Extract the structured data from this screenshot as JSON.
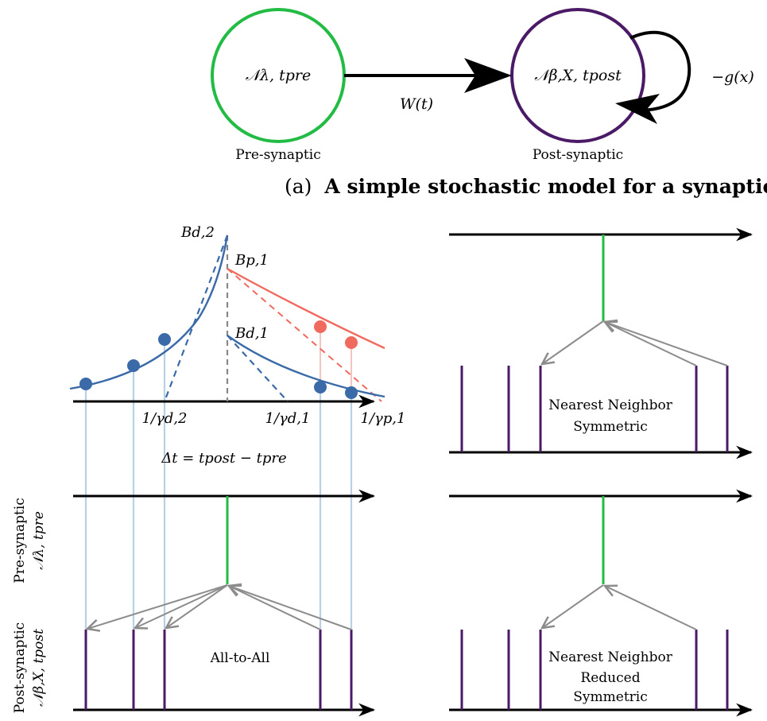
{
  "top": {
    "pre_node_label": "𝒩λ, tpre",
    "post_node_label": "𝒩β,X, tpost",
    "weight_label": "W(t)",
    "feedback_label": "−g(x)",
    "pre_caption": "Pre-synaptic",
    "post_caption": "Post-synaptic",
    "caption_prefix": "(a)",
    "caption_text": "A simple stochastic model for a synaptic connection."
  },
  "curve": {
    "labels": {
      "bd2": "Bd,2",
      "bp1": "Bp,1",
      "bd1": "Bd,1",
      "inv_gd2": "1/γd,2",
      "inv_gd1": "1/γd,1",
      "inv_gp1": "1/γp,1",
      "delta_t": "Δt = tpost − tpre"
    }
  },
  "panels": {
    "all_to_all": "All-to-All",
    "nn_sym_line1": "Nearest Neighbor",
    "nn_sym_line2": "Symmetric",
    "nn_red_line1": "Nearest Neighbor",
    "nn_red_line2": "Reduced",
    "nn_red_line3": "Symmetric"
  },
  "side_labels": {
    "pre_line1": "Pre-synaptic",
    "pre_line2": "𝒩λ, tpre",
    "post_line1": "Post-synaptic",
    "post_line2": "𝒩β,X, tpost"
  },
  "colors": {
    "pre_green": "#22bb44",
    "post_purple": "#4a1a66",
    "depression_blue": "#3a6aa8",
    "potentiation_red": "#f06a5e",
    "light_blue": "#b8d0e4",
    "light_red": "#f6c4c0",
    "gray": "#8c8c8c",
    "black": "#000000"
  }
}
